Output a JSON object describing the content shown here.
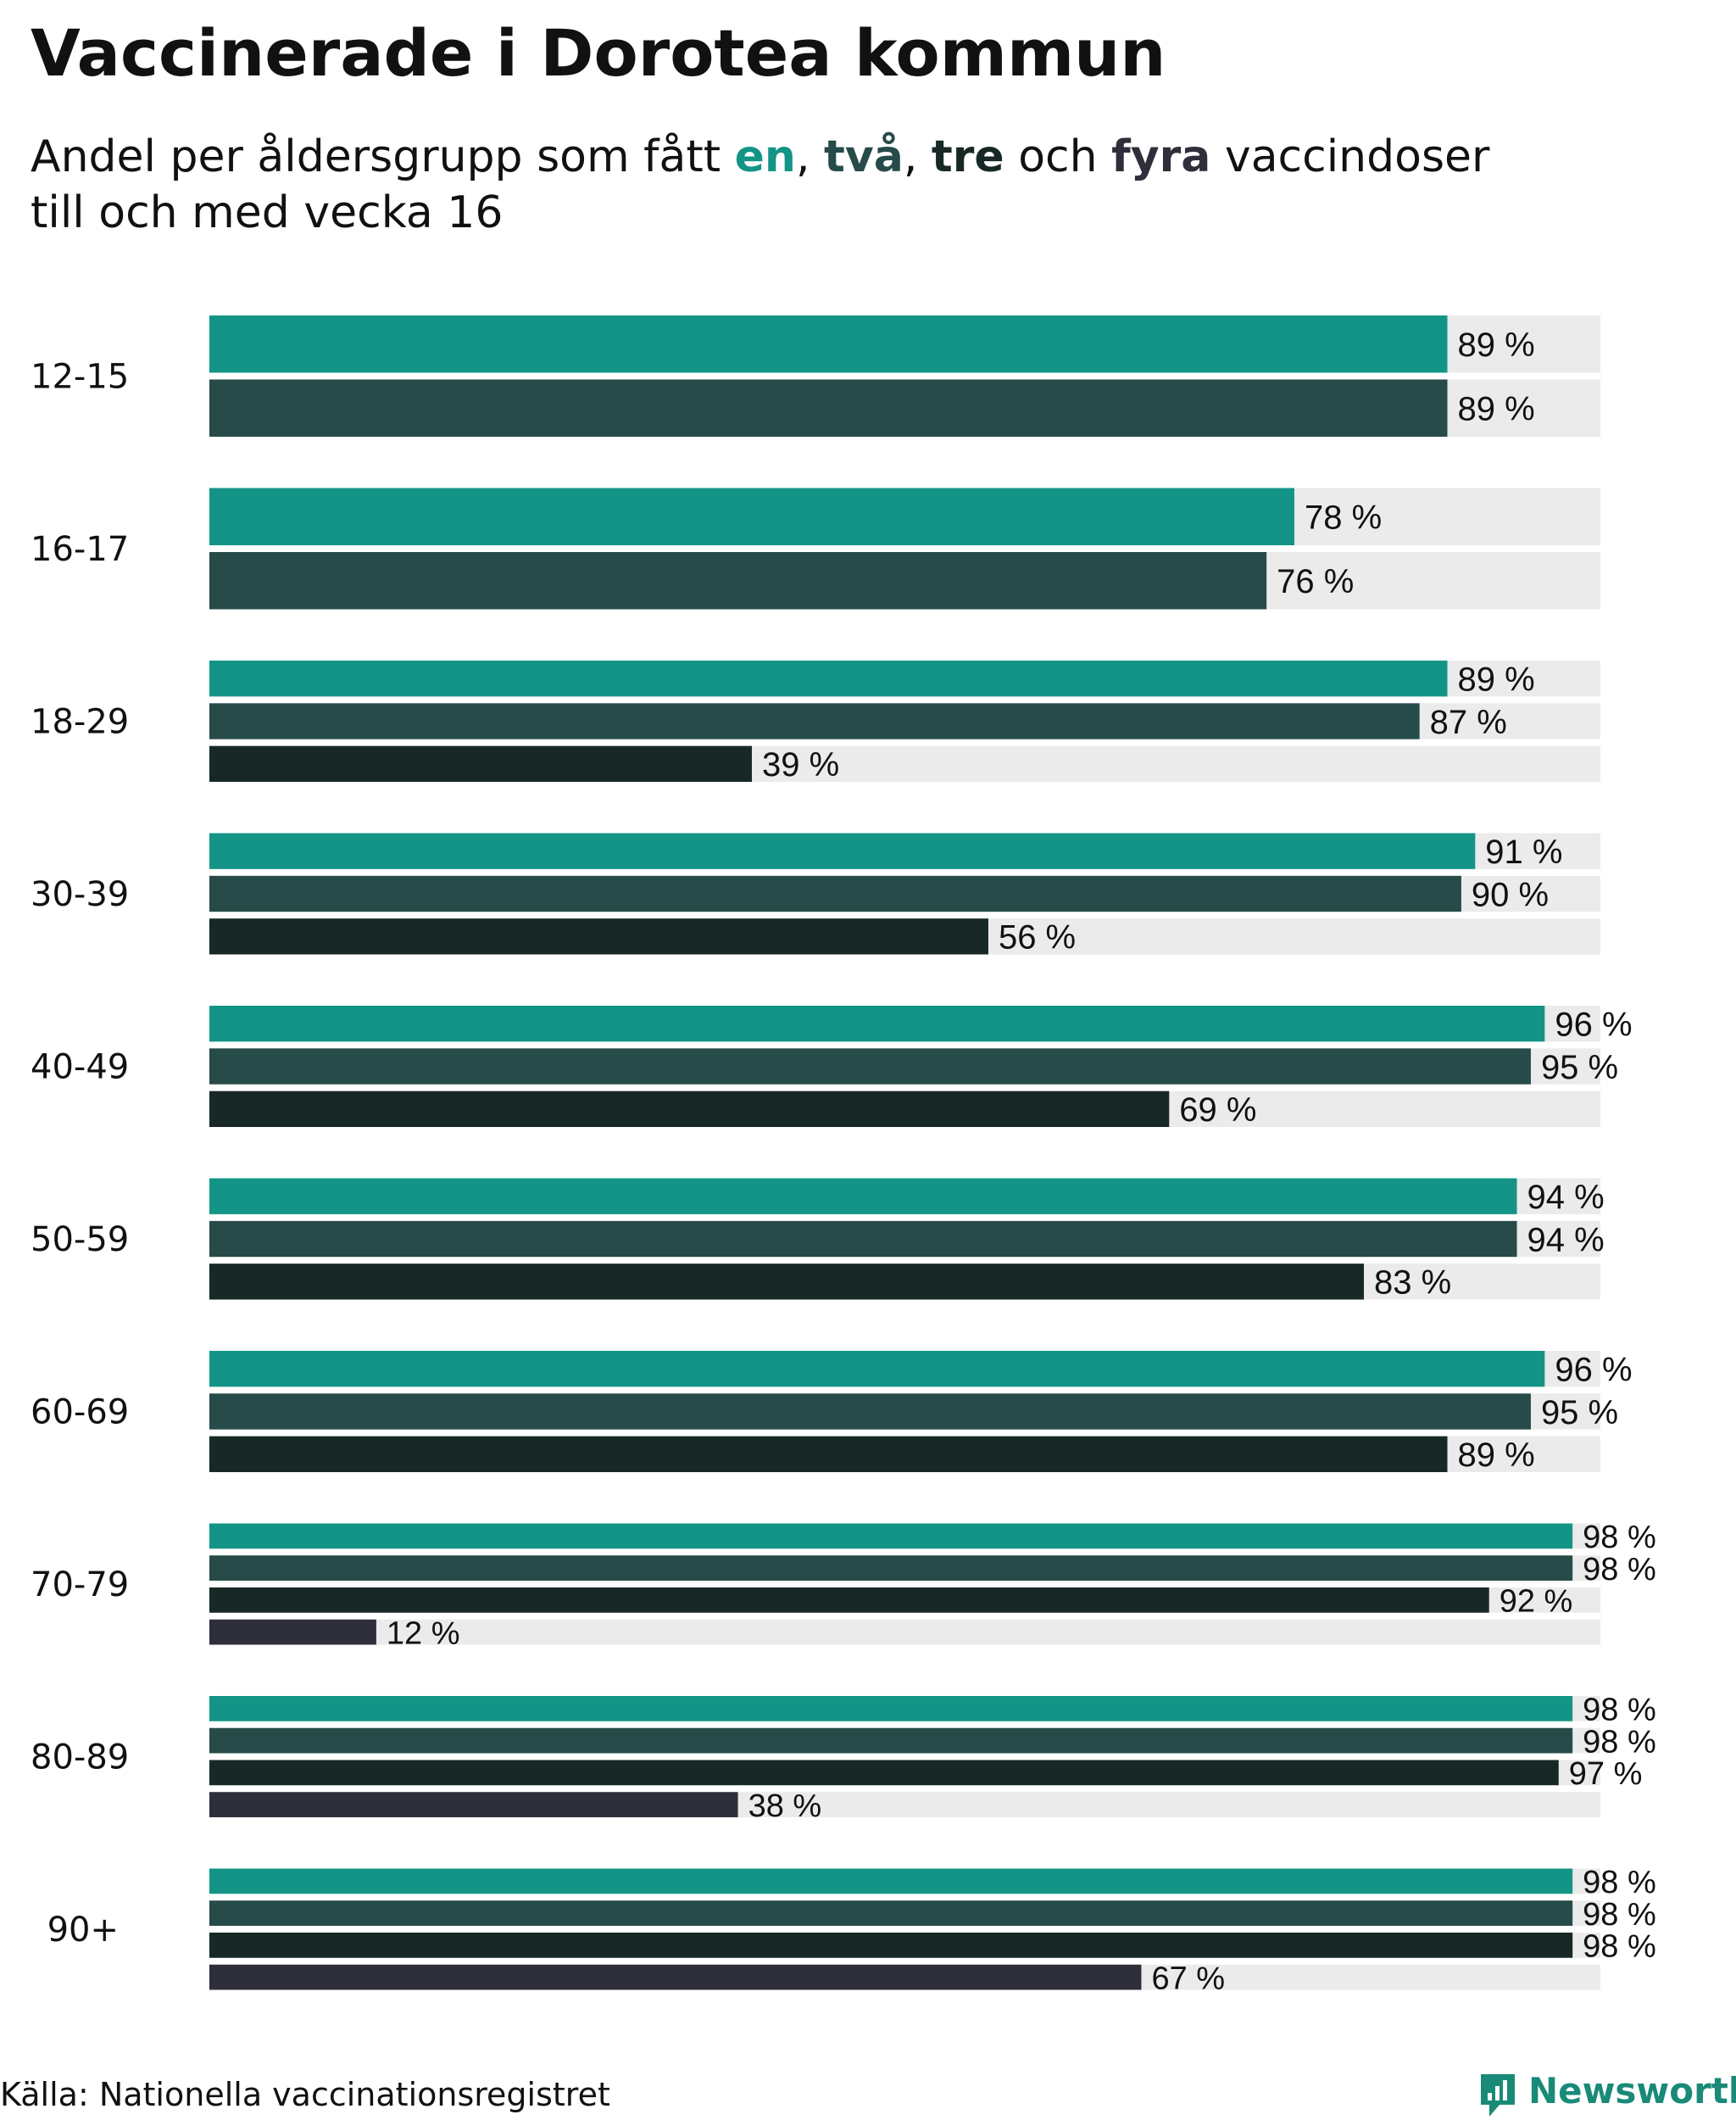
{
  "title": "Vaccinerade i Dorotea kommun",
  "subtitle": {
    "prefix": "Andel per åldersgrupp som fått ",
    "dose1": "en",
    "sep1": ", ",
    "dose2": "två",
    "sep2": ", ",
    "dose3": "tre",
    "mid": " och ",
    "dose4": "fyra",
    "suffix": " vaccindoser",
    "line2": "till och med vecka 16"
  },
  "colors": {
    "dose1": "#139486",
    "dose2": "#264b49",
    "dose3": "#182826",
    "dose4": "#2f2f3b",
    "track": "#ebebeb"
  },
  "chart_data": {
    "type": "bar",
    "orientation": "horizontal",
    "unit": "%",
    "xlim": [
      0,
      100
    ],
    "categories": [
      "12-15",
      "16-17",
      "18-29",
      "30-39",
      "40-49",
      "50-59",
      "60-69",
      "70-79",
      "80-89",
      "90+"
    ],
    "series": [
      {
        "name": "en",
        "values": [
          89,
          78,
          89,
          91,
          96,
          94,
          96,
          98,
          98,
          98
        ]
      },
      {
        "name": "två",
        "values": [
          89,
          76,
          87,
          90,
          95,
          94,
          95,
          98,
          98,
          98
        ]
      },
      {
        "name": "tre",
        "values": [
          null,
          null,
          39,
          56,
          69,
          83,
          89,
          92,
          97,
          98
        ]
      },
      {
        "name": "fyra",
        "values": [
          null,
          null,
          null,
          null,
          null,
          null,
          null,
          12,
          38,
          67
        ]
      }
    ]
  },
  "footer": {
    "source": "Källa: Nationella vaccinationsregistret",
    "logo_text": "Newsworthy"
  }
}
